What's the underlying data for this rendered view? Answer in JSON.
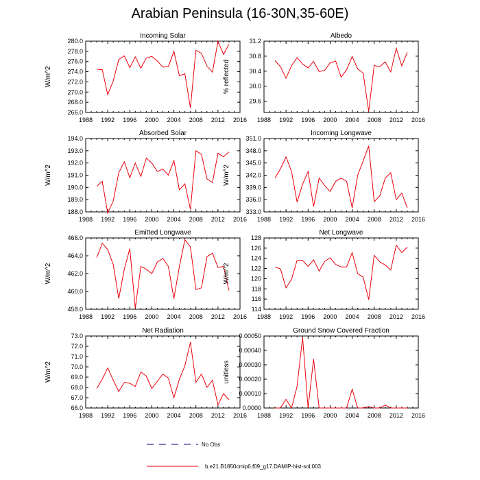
{
  "title": "Arabian Peninsula (16-30N,35-60E)",
  "colors": {
    "series": "#e8000b",
    "obs": "#000080",
    "axis": "#000000"
  },
  "legend": [
    {
      "label": "No Obs",
      "style": "dashed",
      "color": "#000080"
    },
    {
      "label": "b.e21.B1850cmip6.f09_g17.DAMIP-hist-sol.003",
      "style": "solid",
      "color": "#e8000b"
    }
  ],
  "chart_data": [
    {
      "type": "line",
      "title": "Incoming Solar",
      "ylabel": "W/m^2",
      "xlim": [
        1988,
        2016
      ],
      "ylim": [
        266,
        280
      ],
      "xticks": [
        "1988",
        "1992",
        "1996",
        "2000",
        "2004",
        "2008",
        "2012",
        "2016"
      ],
      "yticks": [
        "266.0",
        "268.0",
        "270.0",
        "272.0",
        "274.0",
        "276.0",
        "278.0",
        "280.0"
      ],
      "x": [
        1990,
        1991,
        1992,
        1993,
        1994,
        1995,
        1996,
        1997,
        1998,
        1999,
        2000,
        2001,
        2002,
        2003,
        2004,
        2005,
        2006,
        2007,
        2008,
        2009,
        2010,
        2011,
        2012,
        2013,
        2014
      ],
      "series": [
        {
          "values": [
            274.5,
            274.4,
            269.5,
            272.2,
            276.4,
            277.1,
            274.8,
            276.9,
            274.7,
            276.7,
            277.0,
            276.1,
            274.9,
            275.0,
            278.0,
            273.2,
            273.6,
            266.9,
            278.2,
            277.6,
            275.1,
            273.9,
            280.0,
            277.4,
            279.4
          ]
        }
      ]
    },
    {
      "type": "line",
      "title": "Albedo",
      "ylabel": "% reflected",
      "xlim": [
        1988,
        2016
      ],
      "ylim": [
        29.3,
        31.2
      ],
      "xticks": [
        "1988",
        "1992",
        "1996",
        "2000",
        "2004",
        "2008",
        "2012",
        "2016"
      ],
      "yticks": [
        "29.6",
        "30.0",
        "30.4",
        "30.8",
        "31.2"
      ],
      "x": [
        1990,
        1991,
        1992,
        1993,
        1994,
        1995,
        1996,
        1997,
        1998,
        1999,
        2000,
        2001,
        2002,
        2003,
        2004,
        2005,
        2006,
        2007,
        2008,
        2009,
        2010,
        2011,
        2012,
        2013,
        2014
      ],
      "series": [
        {
          "values": [
            30.68,
            30.52,
            30.21,
            30.55,
            30.76,
            30.59,
            30.49,
            30.66,
            30.39,
            30.42,
            30.62,
            30.67,
            30.24,
            30.44,
            30.79,
            30.46,
            30.35,
            29.33,
            30.55,
            30.52,
            30.65,
            30.38,
            31.01,
            30.54,
            30.9
          ]
        }
      ]
    },
    {
      "type": "line",
      "title": "Absorbed Solar",
      "ylabel": "W/m^2",
      "xlim": [
        1988,
        2016
      ],
      "ylim": [
        188,
        194
      ],
      "xticks": [
        "1988",
        "1992",
        "1996",
        "2000",
        "2004",
        "2008",
        "2012",
        "2016"
      ],
      "yticks": [
        "188.0",
        "189.0",
        "190.0",
        "191.0",
        "192.0",
        "193.0",
        "194.0"
      ],
      "x": [
        1990,
        1991,
        1992,
        1993,
        1994,
        1995,
        1996,
        1997,
        1998,
        1999,
        2000,
        2001,
        2002,
        2003,
        2004,
        2005,
        2006,
        2007,
        2008,
        2009,
        2010,
        2011,
        2012,
        2013,
        2014
      ],
      "series": [
        {
          "values": [
            190.1,
            190.5,
            187.9,
            188.9,
            191.2,
            192.1,
            190.8,
            192.0,
            190.9,
            192.4,
            192.0,
            191.3,
            191.5,
            191.0,
            192.2,
            189.8,
            190.3,
            188.2,
            193.0,
            192.7,
            190.7,
            190.4,
            192.8,
            192.5,
            192.9
          ]
        }
      ]
    },
    {
      "type": "line",
      "title": "Incoming Longwave",
      "ylabel": "W/m^2",
      "xlim": [
        1988,
        2016
      ],
      "ylim": [
        333,
        351
      ],
      "xticks": [
        "1988",
        "1992",
        "1996",
        "2000",
        "2004",
        "2008",
        "2012",
        "2016"
      ],
      "yticks": [
        "333.0",
        "336.0",
        "339.0",
        "342.0",
        "345.0",
        "348.0",
        "351.0"
      ],
      "x": [
        1990,
        1991,
        1992,
        1993,
        1994,
        1995,
        1996,
        1997,
        1998,
        1999,
        2000,
        2001,
        2002,
        2003,
        2004,
        2005,
        2006,
        2007,
        2008,
        2009,
        2010,
        2011,
        2012,
        2013,
        2014
      ],
      "series": [
        {
          "values": [
            341.3,
            343.6,
            346.5,
            342.9,
            335.4,
            339.8,
            342.9,
            334.3,
            341.3,
            339.5,
            338.0,
            340.5,
            341.3,
            340.5,
            334.0,
            342.0,
            345.5,
            349.2,
            335.5,
            336.9,
            341.3,
            342.6,
            336.0,
            337.6,
            334.0
          ]
        }
      ]
    },
    {
      "type": "line",
      "title": "Emitted Longwave",
      "ylabel": "W/m^2",
      "xlim": [
        1988,
        2016
      ],
      "ylim": [
        458,
        466
      ],
      "xticks": [
        "1988",
        "1992",
        "1996",
        "2000",
        "2004",
        "2008",
        "2012",
        "2016"
      ],
      "yticks": [
        "458.0",
        "460.0",
        "462.0",
        "464.0",
        "466.0"
      ],
      "x": [
        1990,
        1991,
        1992,
        1993,
        1994,
        1995,
        1996,
        1997,
        1998,
        1999,
        2000,
        2001,
        2002,
        2003,
        2004,
        2005,
        2006,
        2007,
        2008,
        2009,
        2010,
        2011,
        2012,
        2013,
        2014
      ],
      "series": [
        {
          "values": [
            463.8,
            465.4,
            464.7,
            463.0,
            459.2,
            462.5,
            464.8,
            458.1,
            462.8,
            462.5,
            462.0,
            463.3,
            463.7,
            462.8,
            459.2,
            462.8,
            465.8,
            465.0,
            460.2,
            460.4,
            463.9,
            464.3,
            462.7,
            462.8,
            460.1
          ]
        }
      ]
    },
    {
      "type": "line",
      "title": "Net Longwave",
      "ylabel": "W/m^2",
      "xlim": [
        1988,
        2016
      ],
      "ylim": [
        114,
        128
      ],
      "xticks": [
        "1988",
        "1992",
        "1996",
        "2000",
        "2004",
        "2008",
        "2012",
        "2016"
      ],
      "yticks": [
        "114",
        "116",
        "118",
        "120",
        "122",
        "124",
        "126",
        "128"
      ],
      "x": [
        1990,
        1991,
        1992,
        1993,
        1994,
        1995,
        1996,
        1997,
        1998,
        1999,
        2000,
        2001,
        2002,
        2003,
        2004,
        2005,
        2006,
        2007,
        2008,
        2009,
        2010,
        2011,
        2012,
        2013,
        2014
      ],
      "series": [
        {
          "values": [
            122.3,
            121.9,
            118.2,
            119.9,
            123.6,
            123.6,
            122.4,
            123.7,
            121.5,
            123.4,
            124.1,
            122.8,
            122.3,
            122.3,
            125.1,
            121.0,
            120.3,
            115.9,
            124.6,
            123.3,
            122.7,
            121.7,
            126.6,
            125.1,
            126.2
          ]
        }
      ]
    },
    {
      "type": "line",
      "title": "Net Radiation",
      "ylabel": "W/m^2",
      "xlim": [
        1988,
        2016
      ],
      "ylim": [
        66,
        73
      ],
      "xticks": [
        "1988",
        "1992",
        "1996",
        "2000",
        "2004",
        "2008",
        "2012",
        "2016"
      ],
      "yticks": [
        "66.0",
        "67.0",
        "68.0",
        "69.0",
        "70.0",
        "71.0",
        "72.0",
        "73.0"
      ],
      "x": [
        1990,
        1991,
        1992,
        1993,
        1994,
        1995,
        1996,
        1997,
        1998,
        1999,
        2000,
        2001,
        2002,
        2003,
        2004,
        2005,
        2006,
        2007,
        2008,
        2009,
        2010,
        2011,
        2012,
        2013,
        2014
      ],
      "series": [
        {
          "values": [
            67.9,
            68.8,
            69.9,
            68.7,
            67.6,
            68.5,
            68.4,
            68.1,
            69.5,
            69.1,
            67.9,
            68.6,
            69.3,
            68.9,
            67.0,
            68.8,
            70.1,
            72.4,
            68.5,
            69.3,
            68.0,
            68.7,
            66.3,
            67.4,
            66.8
          ]
        }
      ]
    },
    {
      "type": "line",
      "title": "Ground Snow Covered Fraction",
      "ylabel": "unitless",
      "xlim": [
        1988,
        2016
      ],
      "ylim": [
        0,
        0.0005
      ],
      "xticks": [
        "1988",
        "1992",
        "1996",
        "2000",
        "2004",
        "2008",
        "2012",
        "2016"
      ],
      "yticks": [
        "0.0000",
        "0.00010",
        "0.00020",
        "0.00030",
        "0.00040",
        "0.00050"
      ],
      "x": [
        1990,
        1991,
        1992,
        1993,
        1994,
        1995,
        1996,
        1997,
        1998,
        1999,
        2000,
        2001,
        2002,
        2003,
        2004,
        2005,
        2006,
        2007,
        2008,
        2009,
        2010,
        2011,
        2012,
        2013,
        2014
      ],
      "series": [
        {
          "values": [
            0,
            0,
            6e-05,
            0,
            0.00015,
            0.00049,
            0,
            0.00034,
            0,
            0,
            0,
            0,
            0,
            0,
            0.00013,
            0,
            0,
            1e-05,
            0,
            0,
            2e-05,
            0,
            0,
            0,
            0
          ]
        }
      ]
    }
  ]
}
